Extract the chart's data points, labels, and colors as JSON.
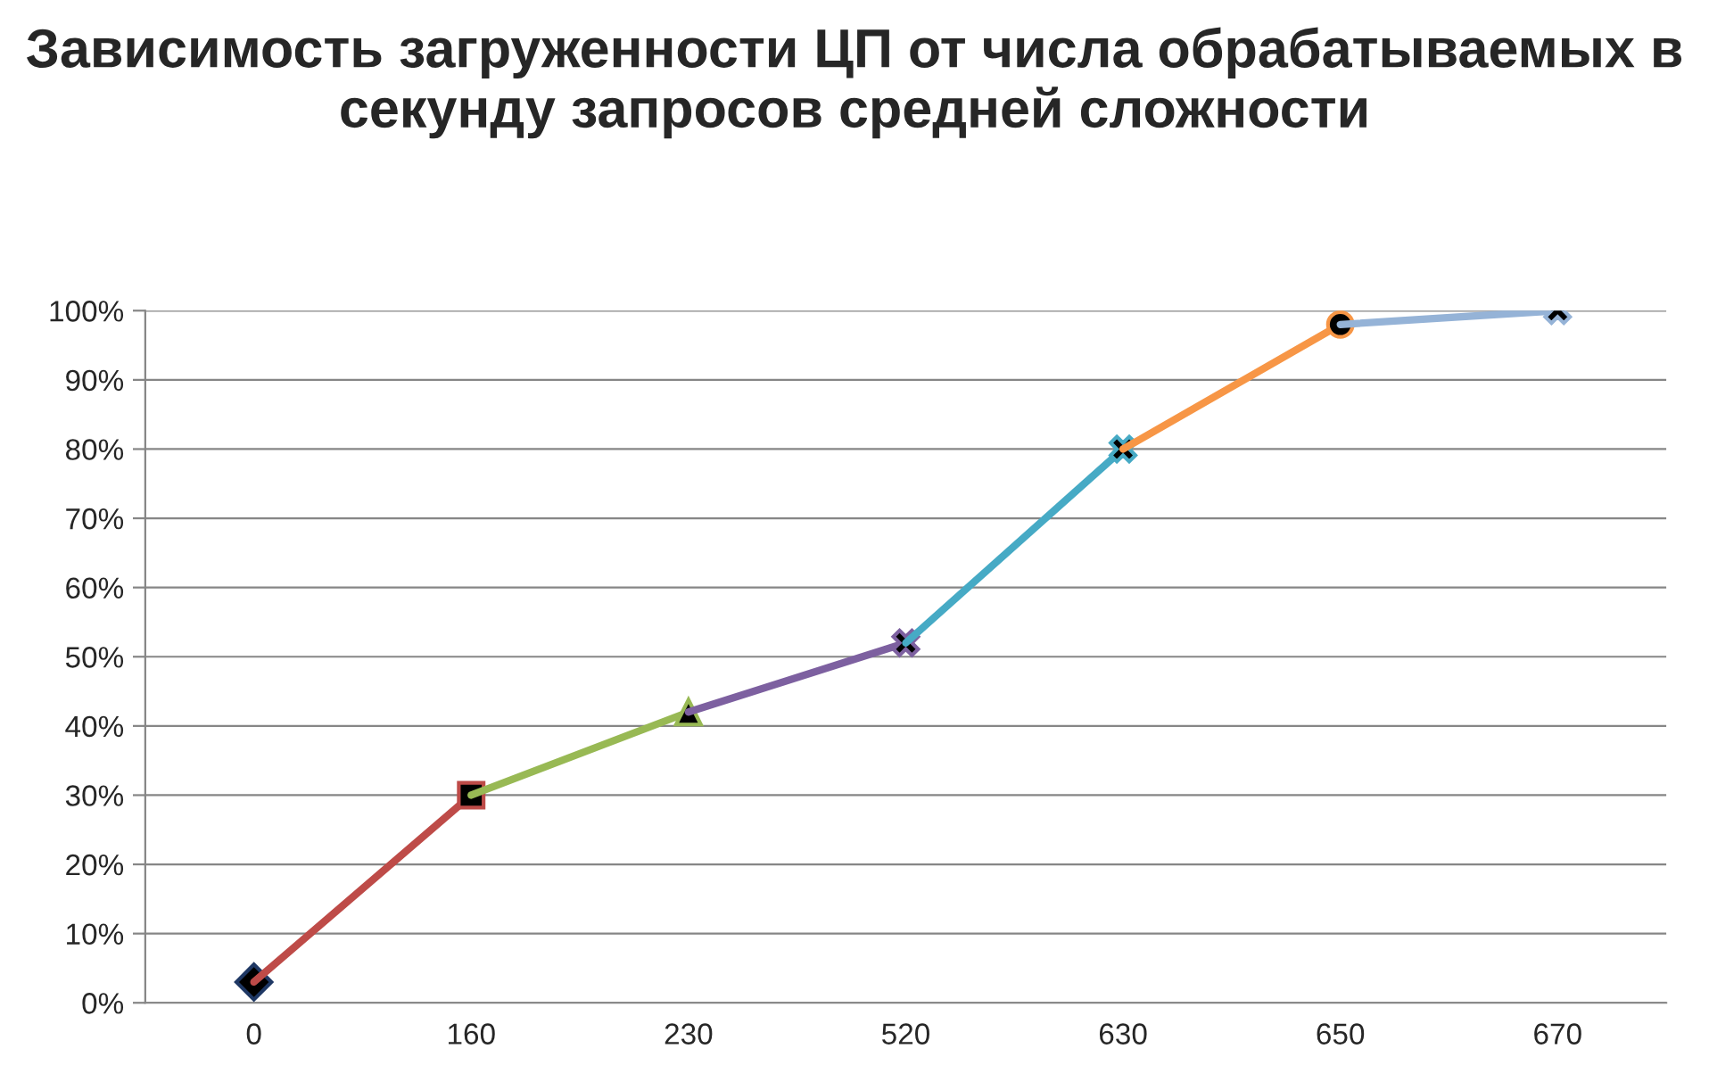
{
  "chart_data": {
    "type": "line",
    "title": "Зависимость загруженности ЦП от числа обрабатываемых в секунду запросов средней сложности",
    "categories": [
      "0",
      "160",
      "230",
      "520",
      "630",
      "650",
      "670"
    ],
    "series": [
      {
        "color": "#1f3864",
        "marker": "diamond",
        "values": [
          3,
          null,
          null,
          null,
          null,
          null,
          null
        ]
      },
      {
        "color": "#be4b48",
        "marker": "square",
        "values": [
          3,
          30,
          null,
          null,
          null,
          null,
          null
        ]
      },
      {
        "color": "#98b954",
        "marker": "triangle",
        "values": [
          null,
          30,
          42,
          null,
          null,
          null,
          null
        ]
      },
      {
        "color": "#7d60a0",
        "marker": "cross",
        "values": [
          null,
          null,
          42,
          52,
          null,
          null,
          null
        ]
      },
      {
        "color": "#46aac5",
        "marker": "cross",
        "values": [
          null,
          null,
          null,
          52,
          80,
          null,
          null
        ]
      },
      {
        "color": "#f79646",
        "marker": "circle",
        "values": [
          null,
          null,
          null,
          null,
          80,
          98,
          null
        ]
      },
      {
        "color": "#95b3d7",
        "marker": "cross",
        "values": [
          null,
          null,
          null,
          null,
          null,
          98,
          100
        ]
      }
    ],
    "ylim": [
      0,
      100
    ],
    "yticks": [
      {
        "value": 0,
        "label": "0%"
      },
      {
        "value": 10,
        "label": "10%"
      },
      {
        "value": 20,
        "label": "20%"
      },
      {
        "value": 30,
        "label": "30%"
      },
      {
        "value": 40,
        "label": "40%"
      },
      {
        "value": 50,
        "label": "50%"
      },
      {
        "value": 60,
        "label": "60%"
      },
      {
        "value": 70,
        "label": "70%"
      },
      {
        "value": 80,
        "label": "80%"
      },
      {
        "value": 90,
        "label": "90%"
      },
      {
        "value": 100,
        "label": "100%"
      }
    ],
    "grid": "y"
  }
}
